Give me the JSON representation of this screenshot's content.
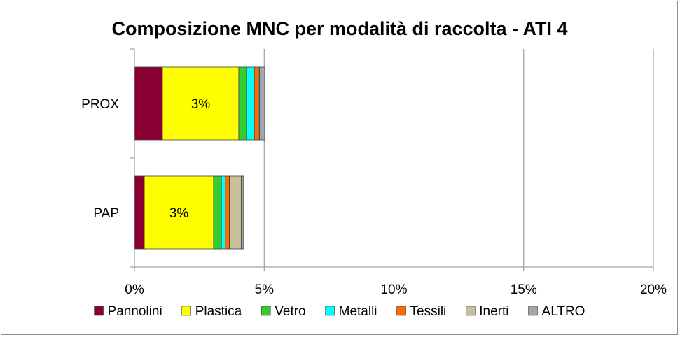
{
  "chart_data": {
    "type": "bar",
    "orientation": "horizontal",
    "stacked": true,
    "title": "Composizione MNC per modalità di raccolta - ATI 4",
    "xlabel": "",
    "ylabel": "",
    "xlim": [
      0,
      0.2
    ],
    "x_ticks": [
      0,
      0.05,
      0.1,
      0.15,
      0.2
    ],
    "x_tick_labels": [
      "0%",
      "5%",
      "10%",
      "15%",
      "20%"
    ],
    "grid": "vertical major gridlines",
    "legend_position": "bottom",
    "categories": [
      "PROX",
      "PAP"
    ],
    "series": [
      {
        "name": "Pannolini",
        "color": "#8b0033",
        "values": [
          0.0108,
          0.0038
        ],
        "labels": [
          "",
          ""
        ]
      },
      {
        "name": "Plastica",
        "color": "#ffff00",
        "values": [
          0.0294,
          0.0267
        ],
        "labels": [
          "3%",
          "3%"
        ]
      },
      {
        "name": "Vetro",
        "color": "#33cc33",
        "values": [
          0.003,
          0.003
        ],
        "labels": [
          "",
          ""
        ]
      },
      {
        "name": "Metalli",
        "color": "#00ffff",
        "values": [
          0.003,
          0.0015
        ],
        "labels": [
          "",
          ""
        ]
      },
      {
        "name": "Tessili",
        "color": "#ff6a00",
        "values": [
          0.0016,
          0.0016
        ],
        "labels": [
          "",
          ""
        ]
      },
      {
        "name": "Inerti",
        "color": "#c8c09a",
        "values": [
          0.0004,
          0.0046
        ],
        "labels": [
          "",
          ""
        ]
      },
      {
        "name": "ALTRO",
        "color": "#a6a6a6",
        "values": [
          0.002,
          0.0009
        ],
        "labels": [
          "",
          ""
        ]
      }
    ]
  }
}
